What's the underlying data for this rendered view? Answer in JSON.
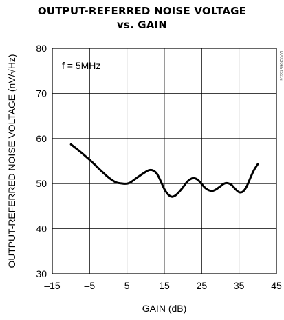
{
  "chart_data": {
    "type": "line",
    "title_line1": "OUTPUT-REFERRED NOISE VOLTAGE",
    "title_line2": "vs. GAIN",
    "xlabel": "GAIN (dB)",
    "ylabel": "OUTPUT-REFERRED NOISE VOLTAGE (nV/√Hz)",
    "annotation": "f = 5MHz",
    "side_code": "MAX2065 toc16",
    "xlim": [
      -15,
      45
    ],
    "ylim": [
      30,
      80
    ],
    "x_ticks": [
      -15,
      -5,
      5,
      15,
      25,
      35,
      45
    ],
    "x_tick_labels": [
      "-15",
      "-5",
      "5",
      "15",
      "25",
      "35",
      "45"
    ],
    "y_ticks": [
      30,
      40,
      50,
      60,
      70,
      80
    ],
    "y_tick_labels": [
      "30",
      "40",
      "50",
      "60",
      "70",
      "80"
    ],
    "grid": true,
    "series": [
      {
        "x": [
          -10,
          -8,
          -6,
          -4,
          -2,
          0,
          2,
          4,
          5,
          6,
          8,
          10,
          11,
          12,
          13,
          14,
          15,
          16,
          17,
          18,
          19,
          20,
          21,
          22,
          23,
          24,
          25,
          26,
          27,
          28,
          29,
          30,
          31,
          32,
          33,
          34,
          35,
          36,
          37,
          38,
          39,
          40
        ],
        "y": [
          58.7,
          57.4,
          56.0,
          54.5,
          52.9,
          51.4,
          50.3,
          50.0,
          50.0,
          50.3,
          51.5,
          52.6,
          53.0,
          52.9,
          52.2,
          50.6,
          48.8,
          47.6,
          47.1,
          47.4,
          48.2,
          49.2,
          50.3,
          51.0,
          51.2,
          50.8,
          49.9,
          49.0,
          48.5,
          48.4,
          48.8,
          49.4,
          50.0,
          50.1,
          49.7,
          48.8,
          48.1,
          48.2,
          49.3,
          51.2,
          53.0,
          54.3
        ]
      }
    ]
  }
}
